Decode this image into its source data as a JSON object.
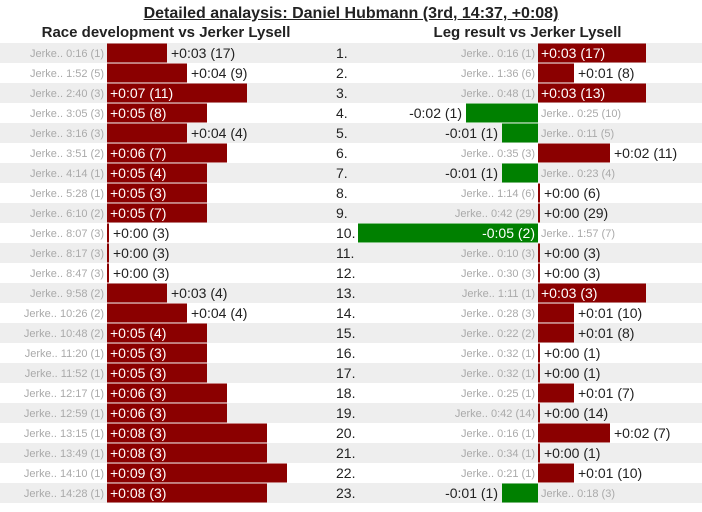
{
  "title": "Detailed analaysis: Daniel Hubmann (3rd, 14:37, +0:08)",
  "colors": {
    "slower": "#8b0000",
    "faster": "#008000",
    "ref_text": "#aaaaaa",
    "row_alt": "#eeeeee"
  },
  "chart_data": [
    {
      "type": "bar",
      "title": "Race development vs Jerker Lysell",
      "orientation": "horizontal",
      "categories": [
        "1.",
        "2.",
        "3.",
        "4.",
        "5.",
        "6.",
        "7.",
        "8.",
        "9.",
        "10.",
        "11.",
        "12.",
        "13.",
        "14.",
        "15.",
        "16.",
        "17.",
        "18.",
        "19.",
        "20.",
        "21.",
        "22.",
        "23."
      ],
      "reference_labels": [
        "Jerke.. 0:16 (1)",
        "Jerke.. 1:52 (5)",
        "Jerke.. 2:40 (3)",
        "Jerke.. 3:05 (3)",
        "Jerke.. 3:16 (3)",
        "Jerke.. 3:51 (2)",
        "Jerke.. 4:14 (1)",
        "Jerke.. 5:28 (1)",
        "Jerke.. 6:10 (2)",
        "Jerke.. 8:07 (3)",
        "Jerke.. 8:17 (3)",
        "Jerke.. 8:47 (3)",
        "Jerke.. 9:58 (2)",
        "Jerke.. 10:26 (2)",
        "Jerke.. 10:48 (2)",
        "Jerke.. 11:20 (1)",
        "Jerke.. 11:52 (1)",
        "Jerke.. 12:17 (1)",
        "Jerke.. 12:59 (1)",
        "Jerke.. 13:15 (1)",
        "Jerke.. 13:49 (1)",
        "Jerke.. 14:10 (1)",
        "Jerke.. 14:28 (1)"
      ],
      "values": [
        3,
        4,
        7,
        5,
        4,
        6,
        5,
        5,
        5,
        0,
        0,
        0,
        3,
        4,
        5,
        5,
        5,
        6,
        6,
        8,
        8,
        9,
        8
      ],
      "value_labels": [
        "+0:03 (17)",
        "+0:04 (9)",
        "+0:07 (11)",
        "+0:05 (8)",
        "+0:04 (4)",
        "+0:06 (7)",
        "+0:05 (4)",
        "+0:05 (3)",
        "+0:05 (7)",
        "+0:00 (3)",
        "+0:00 (3)",
        "+0:00 (3)",
        "+0:03 (4)",
        "+0:04 (4)",
        "+0:05 (4)",
        "+0:05 (3)",
        "+0:05 (3)",
        "+0:06 (3)",
        "+0:06 (3)",
        "+0:08 (3)",
        "+0:08 (3)",
        "+0:09 (3)",
        "+0:08 (3)"
      ],
      "unit": "seconds"
    },
    {
      "type": "bar",
      "title": "Leg result vs Jerker Lysell",
      "orientation": "horizontal",
      "categories": [
        "1.",
        "2.",
        "3.",
        "4.",
        "5.",
        "6.",
        "7.",
        "8.",
        "9.",
        "10.",
        "11.",
        "12.",
        "13.",
        "14.",
        "15.",
        "16.",
        "17.",
        "18.",
        "19.",
        "20.",
        "21.",
        "22.",
        "23."
      ],
      "reference_labels": [
        "Jerke.. 0:16 (1)",
        "Jerke.. 1:36 (6)",
        "Jerke.. 0:48 (1)",
        "Jerke.. 0:25 (10)",
        "Jerke.. 0:11 (5)",
        "Jerke.. 0:35 (3)",
        "Jerke.. 0:23 (4)",
        "Jerke.. 1:14 (6)",
        "Jerke.. 0:42 (29)",
        "Jerke.. 1:57 (7)",
        "Jerke.. 0:10 (3)",
        "Jerke.. 0:30 (3)",
        "Jerke.. 1:11 (1)",
        "Jerke.. 0:28 (3)",
        "Jerke.. 0:22 (2)",
        "Jerke.. 0:32 (1)",
        "Jerke.. 0:32 (1)",
        "Jerke.. 0:25 (1)",
        "Jerke.. 0:42 (14)",
        "Jerke.. 0:16 (1)",
        "Jerke.. 0:34 (1)",
        "Jerke.. 0:21 (1)",
        "Jerke.. 0:18 (3)"
      ],
      "values": [
        3,
        1,
        3,
        -2,
        -1,
        2,
        -1,
        0,
        0,
        -5,
        0,
        0,
        3,
        1,
        1,
        0,
        0,
        1,
        0,
        2,
        0,
        1,
        -1
      ],
      "value_labels": [
        "+0:03 (17)",
        "+0:01 (8)",
        "+0:03 (13)",
        "-0:02 (1)",
        "-0:01 (1)",
        "+0:02 (11)",
        "-0:01 (1)",
        "+0:00 (6)",
        "+0:00 (29)",
        "-0:05 (2)",
        "+0:00 (3)",
        "+0:00 (3)",
        "+0:03 (3)",
        "+0:01 (10)",
        "+0:01 (8)",
        "+0:00 (1)",
        "+0:00 (1)",
        "+0:01 (7)",
        "+0:00 (14)",
        "+0:02 (7)",
        "+0:00 (1)",
        "+0:01 (10)",
        "-0:01 (1)"
      ],
      "unit": "seconds"
    }
  ]
}
